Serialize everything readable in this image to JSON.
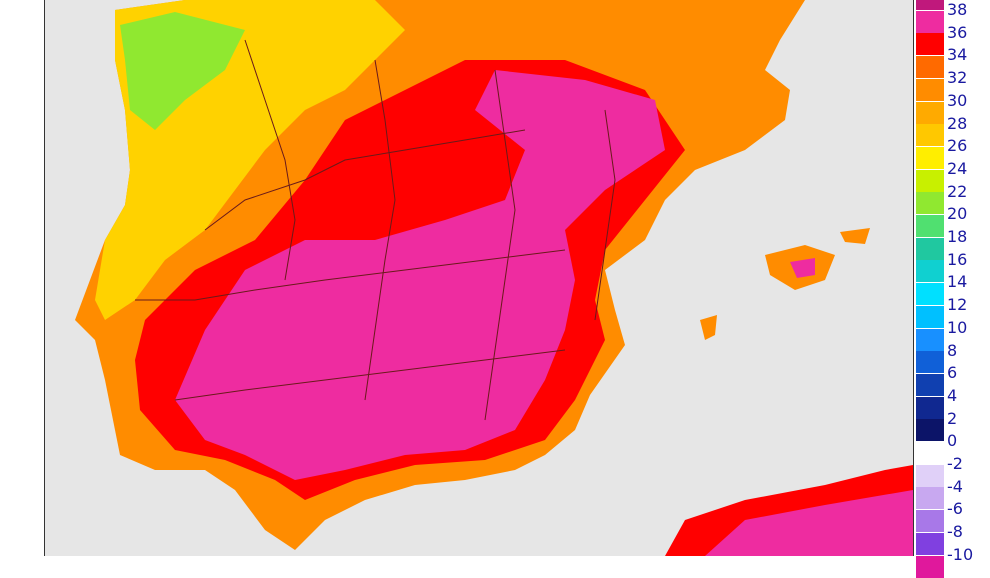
{
  "map": {
    "region": "Iberian Peninsula",
    "background_color": "#e6e6e6",
    "land_hot_color": "#ee2ca0",
    "land_warm_color": "#ff0000",
    "land_mild_color": "#ff8c00",
    "land_cool_color": "#ffd200",
    "border_color": "#6a1a1a"
  },
  "legend": {
    "items": [
      {
        "label": "38",
        "color": "#c0187c"
      },
      {
        "label": "36",
        "color": "#ee2ca0"
      },
      {
        "label": "34",
        "color": "#ff0000"
      },
      {
        "label": "32",
        "color": "#ff6a00"
      },
      {
        "label": "30",
        "color": "#ff8c00"
      },
      {
        "label": "28",
        "color": "#ffaa00"
      },
      {
        "label": "26",
        "color": "#ffc800"
      },
      {
        "label": "24",
        "color": "#ffee00"
      },
      {
        "label": "22",
        "color": "#c8f000"
      },
      {
        "label": "20",
        "color": "#90e830"
      },
      {
        "label": "18",
        "color": "#50e070"
      },
      {
        "label": "16",
        "color": "#20c8a0"
      },
      {
        "label": "14",
        "color": "#10d0d0"
      },
      {
        "label": "12",
        "color": "#00e0ff"
      },
      {
        "label": "10",
        "color": "#00c0ff"
      },
      {
        "label": "8",
        "color": "#1890ff"
      },
      {
        "label": "6",
        "color": "#1060d8"
      },
      {
        "label": "4",
        "color": "#1040b0"
      },
      {
        "label": "2",
        "color": "#102890"
      },
      {
        "label": "0",
        "color": "#0c1468"
      },
      {
        "label": "-2",
        "color": "#ffffff"
      },
      {
        "label": "-4",
        "color": "#e0d0f8"
      },
      {
        "label": "-6",
        "color": "#c8a8f0"
      },
      {
        "label": "-8",
        "color": "#a878e8"
      },
      {
        "label": "-10",
        "color": "#8040e0"
      },
      {
        "label": "",
        "color": "#e0189c"
      }
    ]
  }
}
